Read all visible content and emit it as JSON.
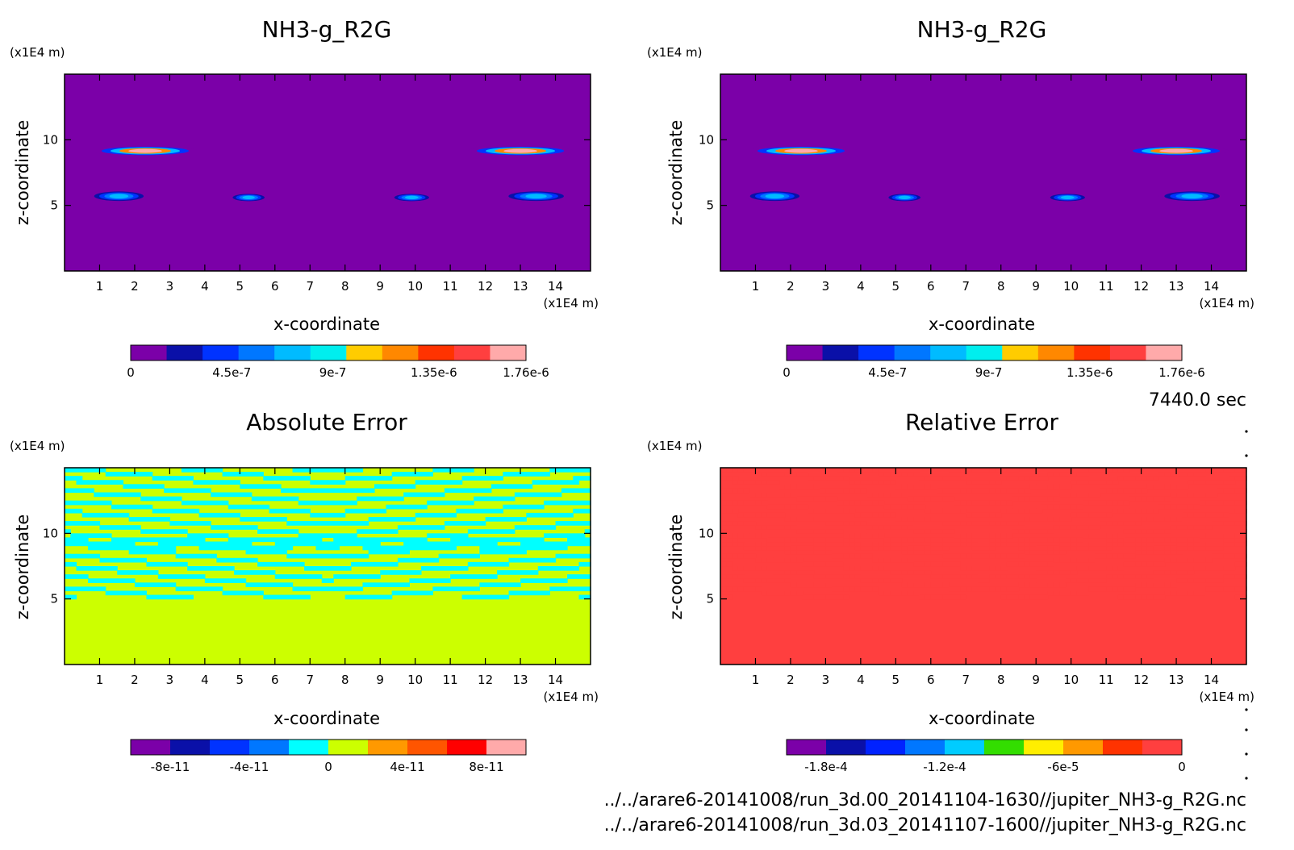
{
  "time_label": "7440.0 sec",
  "files": [
    "../../arare6-20141008/run_3d.00_20141104-1630//jupiter_NH3-g_R2G.nc",
    "../../arare6-20141008/run_3d.03_20141107-1600//jupiter_NH3-g_R2G.nc"
  ],
  "colors": {
    "purple": "#7b00a8",
    "yellowgreen": "#ccff00",
    "cyan": "#00ffff",
    "pink": "#ffaaaa",
    "red": "#ff2222"
  },
  "chart_data": [
    {
      "type": "heatmap",
      "title": "NH3-g_R2G",
      "xlabel": "x-coordinate",
      "ylabel": "z-coordinate",
      "x_unit": "(x1E4 m)",
      "y_unit": "(x1E4 m)",
      "xlim": [
        0,
        15
      ],
      "ylim": [
        0,
        15
      ],
      "xticks": [
        1,
        2,
        3,
        4,
        5,
        6,
        7,
        8,
        9,
        10,
        11,
        12,
        13,
        14
      ],
      "yticks": [
        5,
        10
      ],
      "background_value": 0,
      "features": [
        {
          "x": [
            0.8,
            3.8
          ],
          "z": [
            8.9,
            9.4
          ],
          "peak": 1.7e-06
        },
        {
          "x": [
            11.5,
            14.5
          ],
          "z": [
            8.9,
            9.4
          ],
          "peak": 1.7e-06
        },
        {
          "x": [
            0.7,
            2.4
          ],
          "z": [
            5.4,
            6.0
          ],
          "peak": 8e-07
        },
        {
          "x": [
            4.7,
            5.8
          ],
          "z": [
            5.4,
            5.8
          ],
          "peak": 8e-07
        },
        {
          "x": [
            9.3,
            10.5
          ],
          "z": [
            5.4,
            5.8
          ],
          "peak": 8e-07
        },
        {
          "x": [
            12.5,
            14.4
          ],
          "z": [
            5.4,
            6.0
          ],
          "peak": 8e-07
        }
      ],
      "colorbar": {
        "colors": [
          "#7b00a8",
          "#0a10a8",
          "#0033ff",
          "#0077ff",
          "#00bbff",
          "#00eeee",
          "#ffcc00",
          "#ff8800",
          "#ff3300",
          "#ff3f3f",
          "#ffaaaa"
        ],
        "ticks": [
          "0",
          "4.5e-7",
          "9e-7",
          "1.35e-6",
          "1.76e-6"
        ],
        "tick_values": [
          0,
          4.5e-07,
          9e-07,
          1.35e-06,
          1.76e-06
        ],
        "range": [
          0,
          1.76e-06
        ]
      }
    },
    {
      "type": "heatmap",
      "title": "NH3-g_R2G",
      "xlabel": "x-coordinate",
      "ylabel": "z-coordinate",
      "x_unit": "(x1E4 m)",
      "y_unit": "(x1E4 m)",
      "xlim": [
        0,
        15
      ],
      "ylim": [
        0,
        15
      ],
      "xticks": [
        1,
        2,
        3,
        4,
        5,
        6,
        7,
        8,
        9,
        10,
        11,
        12,
        13,
        14
      ],
      "yticks": [
        5,
        10
      ],
      "background_value": 0,
      "features": [
        {
          "x": [
            0.8,
            3.8
          ],
          "z": [
            8.9,
            9.4
          ],
          "peak": 1.7e-06
        },
        {
          "x": [
            11.5,
            14.5
          ],
          "z": [
            8.9,
            9.4
          ],
          "peak": 1.7e-06
        },
        {
          "x": [
            0.7,
            2.4
          ],
          "z": [
            5.4,
            6.0
          ],
          "peak": 8e-07
        },
        {
          "x": [
            4.7,
            5.8
          ],
          "z": [
            5.4,
            5.8
          ],
          "peak": 8e-07
        },
        {
          "x": [
            9.3,
            10.5
          ],
          "z": [
            5.4,
            5.8
          ],
          "peak": 8e-07
        },
        {
          "x": [
            12.5,
            14.4
          ],
          "z": [
            5.4,
            6.0
          ],
          "peak": 8e-07
        }
      ],
      "colorbar": {
        "colors": [
          "#7b00a8",
          "#0a10a8",
          "#0033ff",
          "#0077ff",
          "#00bbff",
          "#00eeee",
          "#ffcc00",
          "#ff8800",
          "#ff3300",
          "#ff3f3f",
          "#ffaaaa"
        ],
        "ticks": [
          "0",
          "4.5e-7",
          "9e-7",
          "1.35e-6",
          "1.76e-6"
        ],
        "tick_values": [
          0,
          4.5e-07,
          9e-07,
          1.35e-06,
          1.76e-06
        ],
        "range": [
          0,
          1.76e-06
        ]
      }
    },
    {
      "type": "heatmap",
      "title": "Absolute Error",
      "xlabel": "x-coordinate",
      "ylabel": "z-coordinate",
      "x_unit": "(x1E4 m)",
      "y_unit": "(x1E4 m)",
      "xlim": [
        0,
        15
      ],
      "ylim": [
        0,
        15
      ],
      "xticks": [
        1,
        2,
        3,
        4,
        5,
        6,
        7,
        8,
        9,
        10,
        11,
        12,
        13,
        14
      ],
      "yticks": [
        5,
        10
      ],
      "background_value": 0,
      "pattern": {
        "z_range": [
          5.0,
          15.0
        ],
        "value": -1e-11,
        "approx_fraction": 0.38
      },
      "colorbar": {
        "colors": [
          "#7b00a8",
          "#0a10a8",
          "#0033ff",
          "#0077ff",
          "#00ffff",
          "#ccff00",
          "#ff9900",
          "#ff5500",
          "#ff0000",
          "#ffaaaa"
        ],
        "ticks": [
          "-8e-11",
          "-4e-11",
          "0",
          "4e-11",
          "8e-11"
        ],
        "tick_values": [
          -8e-11,
          -4e-11,
          0,
          4e-11,
          8e-11
        ],
        "range": [
          -1e-10,
          1e-10
        ]
      }
    },
    {
      "type": "heatmap",
      "title": "Relative Error",
      "xlabel": "x-coordinate",
      "ylabel": "z-coordinate",
      "x_unit": "(x1E4 m)",
      "y_unit": "(x1E4 m)",
      "xlim": [
        0,
        15
      ],
      "ylim": [
        0,
        15
      ],
      "xticks": [
        1,
        2,
        3,
        4,
        5,
        6,
        7,
        8,
        9,
        10,
        11,
        12,
        13,
        14
      ],
      "yticks": [
        5,
        10
      ],
      "background_value": 0,
      "pattern": {
        "z_range": [
          5.0,
          15.0
        ],
        "value": -1e-05,
        "approx_fraction": 0.38
      },
      "colorbar": {
        "colors": [
          "#7b00a8",
          "#0a10a8",
          "#0022ff",
          "#0077ff",
          "#00ccff",
          "#33dd00",
          "#ffee00",
          "#ff9900",
          "#ff3300",
          "#ff3f3f"
        ],
        "ticks": [
          "-1.8e-4",
          "-1.2e-4",
          "-6e-5",
          "0"
        ],
        "tick_values": [
          -0.00018,
          -0.00012,
          -6e-05,
          0
        ],
        "range": [
          -0.0002,
          0
        ]
      }
    }
  ]
}
